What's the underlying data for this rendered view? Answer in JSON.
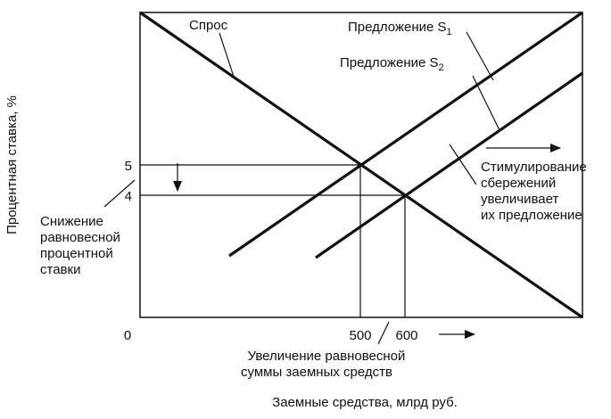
{
  "chart_data": {
    "type": "line",
    "title": "",
    "xlabel": "Заемные средства, млрд руб.",
    "ylabel": "Процентная ставка, %",
    "x_ticks": [
      "0",
      "500",
      "600"
    ],
    "y_ticks": [
      "5",
      "4"
    ],
    "series": [
      {
        "name": "Спрос",
        "kind": "demand"
      },
      {
        "name": "Предложение S",
        "subscript": "1",
        "kind": "supply"
      },
      {
        "name": "Предложение S",
        "subscript": "2",
        "kind": "supply"
      }
    ],
    "equilibria": [
      {
        "x": 500,
        "y": 5
      },
      {
        "x": 600,
        "y": 4
      }
    ],
    "annotations": {
      "rate_drop": [
        "Снижение",
        "равновесной",
        "процентной",
        "ставки"
      ],
      "stimulus": [
        "Стимулирование",
        "сбережений",
        "увеличивает",
        "их предложение"
      ],
      "volume_rise": [
        "Увеличение равновесной",
        "суммы заемных средств"
      ]
    },
    "grid": false,
    "legend": "none"
  }
}
